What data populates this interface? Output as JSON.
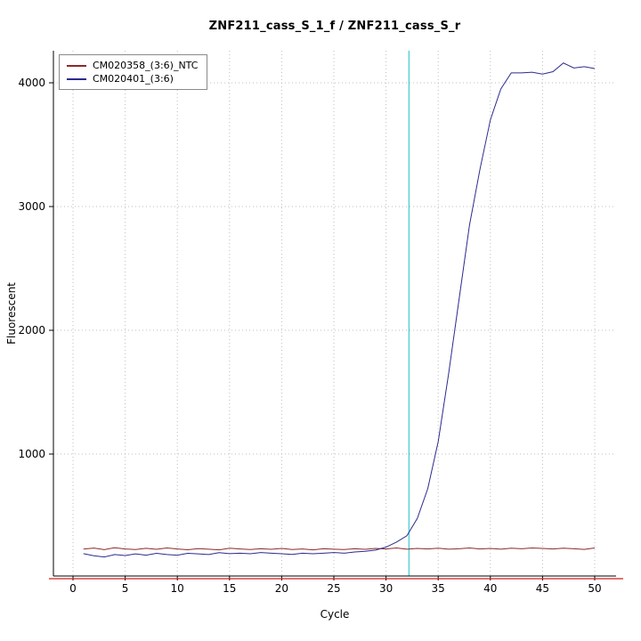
{
  "chart_data": {
    "type": "line",
    "title": "ZNF211_cass_S_1_f / ZNF211_cass_S_r",
    "xlabel": "Cycle",
    "ylabel": "Fluorescent",
    "x_ticks": [
      0,
      5,
      10,
      15,
      20,
      25,
      30,
      35,
      40,
      45,
      50
    ],
    "y_ticks": [
      1000,
      2000,
      3000,
      4000
    ],
    "xlim": [
      -2,
      52
    ],
    "ylim": [
      0,
      4250
    ],
    "grid": true,
    "legend_position": "top-left",
    "threshold_line": {
      "x": 32.2,
      "color": "#44cccc"
    },
    "baseline_line": {
      "y": 0,
      "color": "#cc2020"
    },
    "x": [
      1,
      2,
      3,
      4,
      5,
      6,
      7,
      8,
      9,
      10,
      11,
      12,
      13,
      14,
      15,
      16,
      17,
      18,
      19,
      20,
      21,
      22,
      23,
      24,
      25,
      26,
      27,
      28,
      29,
      30,
      31,
      32,
      33,
      34,
      35,
      36,
      37,
      38,
      39,
      40,
      41,
      42,
      43,
      44,
      45,
      46,
      47,
      48,
      49,
      50
    ],
    "series": [
      {
        "name": "CM020358_(3:6)_NTC",
        "color": "#8b2a2a",
        "values": [
          232,
          240,
          228,
          243,
          233,
          228,
          238,
          230,
          241,
          233,
          227,
          236,
          231,
          226,
          239,
          233,
          228,
          235,
          230,
          237,
          228,
          233,
          226,
          235,
          231,
          228,
          235,
          230,
          237,
          233,
          241,
          231,
          237,
          233,
          239,
          231,
          235,
          241,
          233,
          237,
          231,
          239,
          235,
          241,
          237,
          233,
          239,
          235,
          229,
          241
        ]
      },
      {
        "name": "CM020401_(3:6)",
        "color": "#2b2b8f",
        "values": [
          195,
          178,
          168,
          188,
          180,
          193,
          183,
          198,
          188,
          183,
          198,
          193,
          188,
          203,
          195,
          199,
          194,
          204,
          199,
          194,
          189,
          199,
          194,
          199,
          204,
          199,
          209,
          214,
          224,
          248,
          288,
          340,
          480,
          720,
          1100,
          1650,
          2250,
          2850,
          3300,
          3700,
          3950,
          4080,
          4080,
          4085,
          4070,
          4090,
          4160,
          4120,
          4130,
          4115
        ]
      }
    ]
  }
}
